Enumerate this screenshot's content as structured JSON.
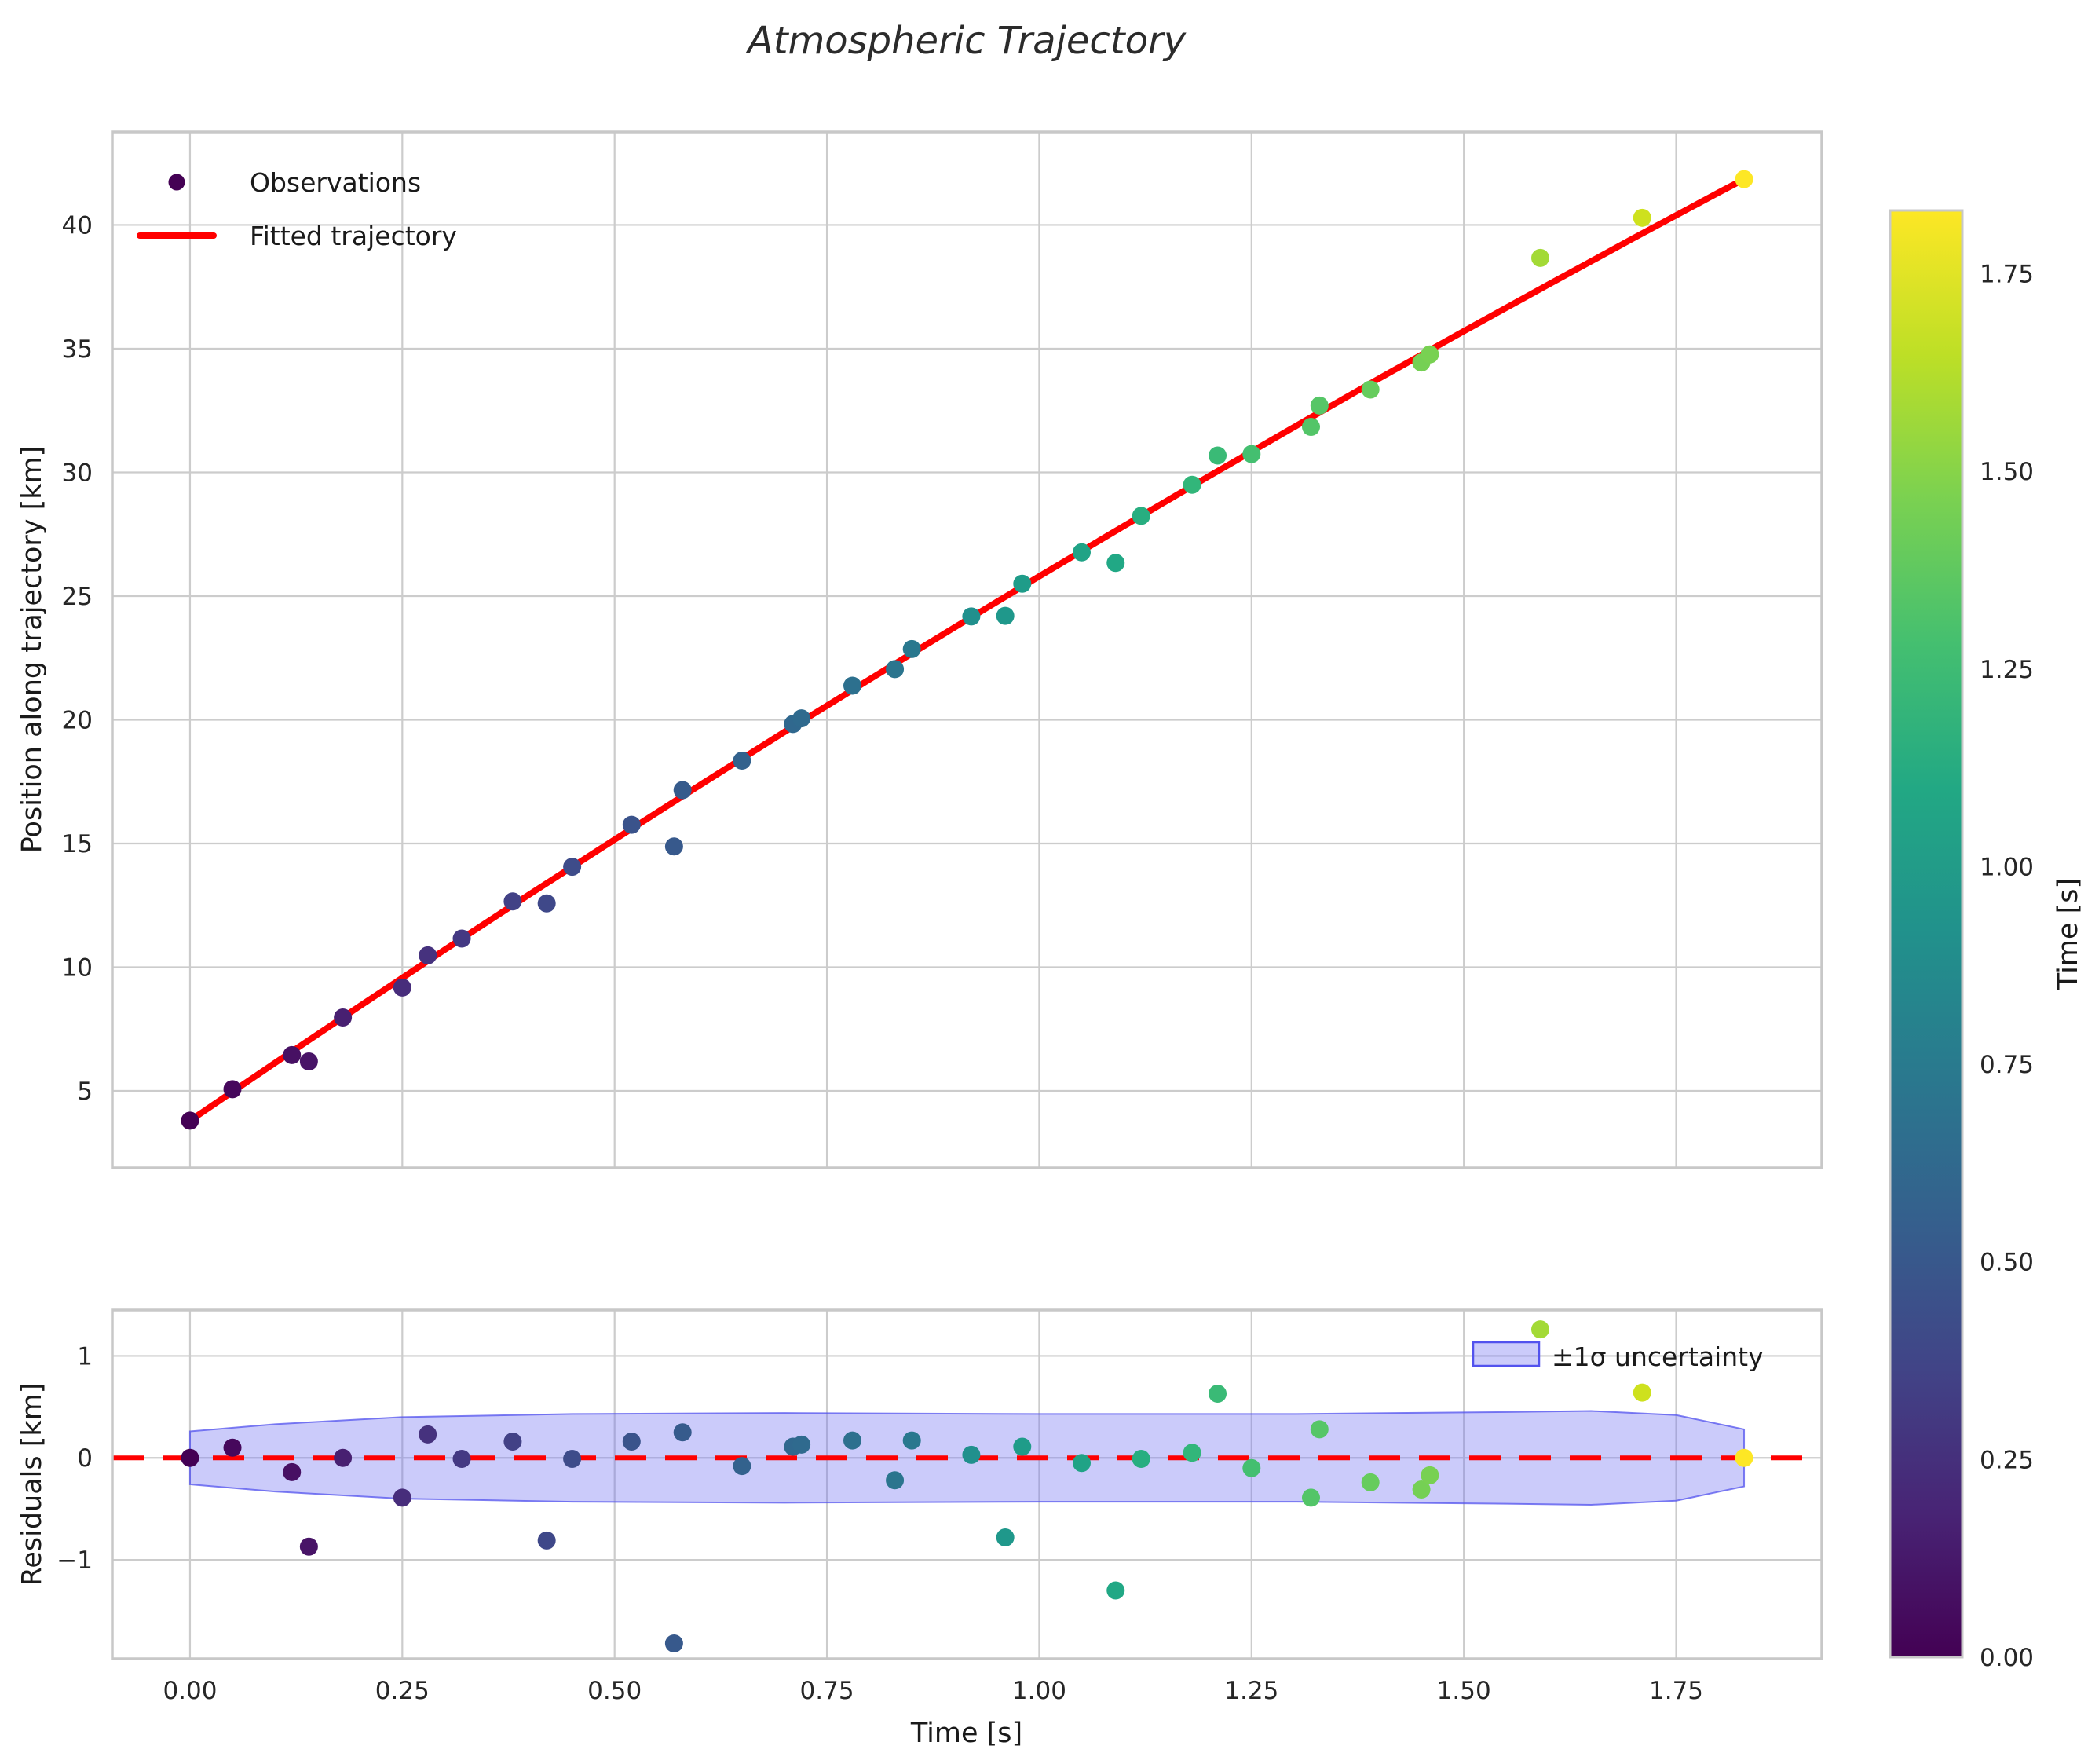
{
  "title": "Atmospheric Trajectory",
  "chart_data": {
    "type": "scatter",
    "title": "Atmospheric Trajectory",
    "grid": true,
    "colors": {
      "fit_line": "#ff0000",
      "zero_line": "#ff0000",
      "band_fill": "#6a6af0",
      "band_edge": "#5252ee",
      "grid_line": "#cccccc",
      "spine": "#c8c8c8",
      "first_observation": "#440154"
    },
    "main_panel": {
      "ylabel": "Position along trajectory [km]",
      "legend_observations": "Observations",
      "legend_fitted": "Fitted trajectory",
      "xlim": [
        -0.0915,
        1.9215
      ],
      "ylim": [
        1.89,
        43.76
      ],
      "ytick_values": [
        5,
        10,
        15,
        20,
        25,
        30,
        35,
        40
      ],
      "ytick_labels": [
        "5",
        "10",
        "15",
        "20",
        "25",
        "30",
        "35",
        "40"
      ],
      "fitted_line_points": [
        [
          0,
          3.8
        ],
        [
          0.1,
          6.13
        ],
        [
          0.2,
          8.43
        ],
        [
          0.3,
          10.71
        ],
        [
          0.4,
          12.95
        ],
        [
          0.5,
          15.16
        ],
        [
          0.6,
          17.35
        ],
        [
          0.7,
          19.51
        ],
        [
          0.8,
          21.63
        ],
        [
          0.9,
          23.73
        ],
        [
          1.0,
          25.8
        ],
        [
          1.1,
          27.84
        ],
        [
          1.2,
          29.85
        ],
        [
          1.3,
          31.83
        ],
        [
          1.4,
          33.79
        ],
        [
          1.5,
          35.71
        ],
        [
          1.6,
          37.6
        ],
        [
          1.7,
          39.47
        ],
        [
          1.8,
          41.31
        ],
        [
          1.83,
          41.85
        ]
      ]
    },
    "observations": [
      {
        "t": 0.0,
        "y": 3.8,
        "r": 0.0,
        "color": "#440154"
      },
      {
        "t": 0.05,
        "y": 5.07,
        "r": 0.1,
        "color": "#46085c"
      },
      {
        "t": 0.12,
        "y": 6.45,
        "r": -0.14,
        "color": "#471063"
      },
      {
        "t": 0.14,
        "y": 6.19,
        "r": -0.87,
        "color": "#481467"
      },
      {
        "t": 0.18,
        "y": 7.97,
        "r": 0.0,
        "color": "#482071"
      },
      {
        "t": 0.25,
        "y": 9.18,
        "r": -0.39,
        "color": "#472d7b"
      },
      {
        "t": 0.28,
        "y": 10.48,
        "r": 0.23,
        "color": "#46327e"
      },
      {
        "t": 0.32,
        "y": 11.16,
        "r": -0.01,
        "color": "#443983"
      },
      {
        "t": 0.38,
        "y": 12.66,
        "r": 0.16,
        "color": "#424186"
      },
      {
        "t": 0.42,
        "y": 12.58,
        "r": -0.81,
        "color": "#3f4889"
      },
      {
        "t": 0.45,
        "y": 14.06,
        "r": -0.01,
        "color": "#3e4c8a"
      },
      {
        "t": 0.52,
        "y": 15.76,
        "r": 0.16,
        "color": "#3a538b"
      },
      {
        "t": 0.57,
        "y": 14.88,
        "r": -1.82,
        "color": "#37598c"
      },
      {
        "t": 0.58,
        "y": 17.16,
        "r": 0.25,
        "color": "#365b8c"
      },
      {
        "t": 0.65,
        "y": 18.35,
        "r": -0.08,
        "color": "#33628d"
      },
      {
        "t": 0.71,
        "y": 19.83,
        "r": 0.11,
        "color": "#30688e"
      },
      {
        "t": 0.72,
        "y": 20.06,
        "r": 0.13,
        "color": "#2f6a8e"
      },
      {
        "t": 0.78,
        "y": 21.38,
        "r": 0.17,
        "color": "#2d708e"
      },
      {
        "t": 0.83,
        "y": 22.05,
        "r": -0.22,
        "color": "#2b758e"
      },
      {
        "t": 0.85,
        "y": 22.86,
        "r": 0.17,
        "color": "#29788e"
      },
      {
        "t": 0.92,
        "y": 24.18,
        "r": 0.03,
        "color": "#21908d"
      },
      {
        "t": 0.96,
        "y": 24.2,
        "r": -0.78,
        "color": "#1f988b"
      },
      {
        "t": 0.98,
        "y": 25.5,
        "r": 0.11,
        "color": "#1f9c89"
      },
      {
        "t": 1.05,
        "y": 26.77,
        "r": -0.05,
        "color": "#20a386"
      },
      {
        "t": 1.09,
        "y": 26.34,
        "r": -1.3,
        "color": "#21a885"
      },
      {
        "t": 1.12,
        "y": 28.24,
        "r": -0.01,
        "color": "#28ae80"
      },
      {
        "t": 1.18,
        "y": 29.5,
        "r": 0.05,
        "color": "#32b67a"
      },
      {
        "t": 1.21,
        "y": 30.68,
        "r": 0.63,
        "color": "#3aba76"
      },
      {
        "t": 1.25,
        "y": 30.74,
        "r": -0.1,
        "color": "#44bf70"
      },
      {
        "t": 1.32,
        "y": 31.84,
        "r": -0.39,
        "color": "#53c568"
      },
      {
        "t": 1.33,
        "y": 32.7,
        "r": 0.28,
        "color": "#56c667"
      },
      {
        "t": 1.39,
        "y": 33.35,
        "r": -0.24,
        "color": "#66cc5d"
      },
      {
        "t": 1.45,
        "y": 34.44,
        "r": -0.31,
        "color": "#75d054"
      },
      {
        "t": 1.46,
        "y": 34.77,
        "r": -0.17,
        "color": "#78d152"
      },
      {
        "t": 1.59,
        "y": 38.67,
        "r": 1.26,
        "color": "#a3da36"
      },
      {
        "t": 1.71,
        "y": 40.29,
        "r": 0.64,
        "color": "#cee11e"
      },
      {
        "t": 1.83,
        "y": 41.85,
        "r": 0.0,
        "color": "#fde725"
      }
    ],
    "residual_panel": {
      "ylabel": "Residuals [km]",
      "xlabel": "Time [s]",
      "legend_band": "±1σ uncertainty",
      "ylim": [
        -1.97,
        1.45
      ],
      "ytick_values": [
        -1,
        0,
        1
      ],
      "ytick_labels": [
        "−1",
        "0",
        "1"
      ],
      "xtick_values": [
        0,
        0.25,
        0.5,
        0.75,
        1.0,
        1.25,
        1.5,
        1.75
      ],
      "xtick_labels": [
        "0.00",
        "0.25",
        "0.50",
        "0.75",
        "1.00",
        "1.25",
        "1.50",
        "1.75"
      ],
      "band_sigma_points": [
        [
          0,
          0.26
        ],
        [
          0.1,
          0.33
        ],
        [
          0.25,
          0.4
        ],
        [
          0.45,
          0.43
        ],
        [
          0.7,
          0.44
        ],
        [
          1.0,
          0.43
        ],
        [
          1.3,
          0.43
        ],
        [
          1.55,
          0.45
        ],
        [
          1.65,
          0.46
        ],
        [
          1.75,
          0.42
        ],
        [
          1.83,
          0.28
        ]
      ]
    },
    "colorbar": {
      "label": "Time [s]",
      "min": 0,
      "max": 1.83,
      "tick_values": [
        0,
        0.25,
        0.5,
        0.75,
        1.0,
        1.25,
        1.5,
        1.75
      ],
      "tick_labels": [
        "0.00",
        "0.25",
        "0.50",
        "0.75",
        "1.00",
        "1.25",
        "1.50",
        "1.75"
      ],
      "colormap": "viridis",
      "stops": [
        [
          0.0,
          "#440154"
        ],
        [
          0.1,
          "#482475"
        ],
        [
          0.2,
          "#414487"
        ],
        [
          0.3,
          "#355f8d"
        ],
        [
          0.4,
          "#2a788e"
        ],
        [
          0.5,
          "#21918c"
        ],
        [
          0.6,
          "#22a884"
        ],
        [
          0.7,
          "#44bf70"
        ],
        [
          0.8,
          "#7ad151"
        ],
        [
          0.9,
          "#bddf26"
        ],
        [
          1.0,
          "#fde725"
        ]
      ]
    }
  }
}
